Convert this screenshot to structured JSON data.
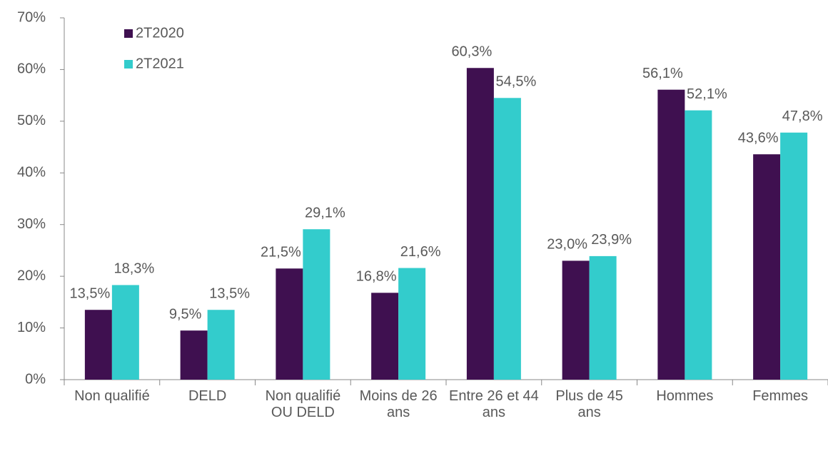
{
  "chart_data": {
    "type": "bar",
    "categories": [
      "Non qualifié",
      "DELD",
      "Non qualifié OU DELD",
      "Moins de 26 ans",
      "Entre 26 et 44 ans",
      "Plus de 45 ans",
      "Hommes",
      "Femmes"
    ],
    "series": [
      {
        "name": "2T2020",
        "color": "#3f1050",
        "values": [
          13.5,
          9.5,
          21.5,
          16.8,
          60.3,
          23.0,
          56.1,
          43.6
        ],
        "value_labels": [
          "13,5%",
          "9,5%",
          "21,5%",
          "16,8%",
          "60,3%",
          "23,0%",
          "56,1%",
          "43,6%"
        ]
      },
      {
        "name": "2T2021",
        "color": "#33cccc",
        "values": [
          18.3,
          13.5,
          29.1,
          21.6,
          54.5,
          23.9,
          52.1,
          47.8
        ],
        "value_labels": [
          "18,3%",
          "13,5%",
          "29,1%",
          "21,6%",
          "54,5%",
          "23,9%",
          "52,1%",
          "47,8%"
        ]
      }
    ],
    "ylim": [
      0,
      70
    ],
    "yticks": [
      {
        "value": 0,
        "label": "0%"
      },
      {
        "value": 10,
        "label": "10%"
      },
      {
        "value": 20,
        "label": "20%"
      },
      {
        "value": 30,
        "label": "30%"
      },
      {
        "value": 40,
        "label": "40%"
      },
      {
        "value": 50,
        "label": "50%"
      },
      {
        "value": 60,
        "label": "60%"
      },
      {
        "value": 70,
        "label": "70%"
      }
    ],
    "legend": "top-left"
  }
}
